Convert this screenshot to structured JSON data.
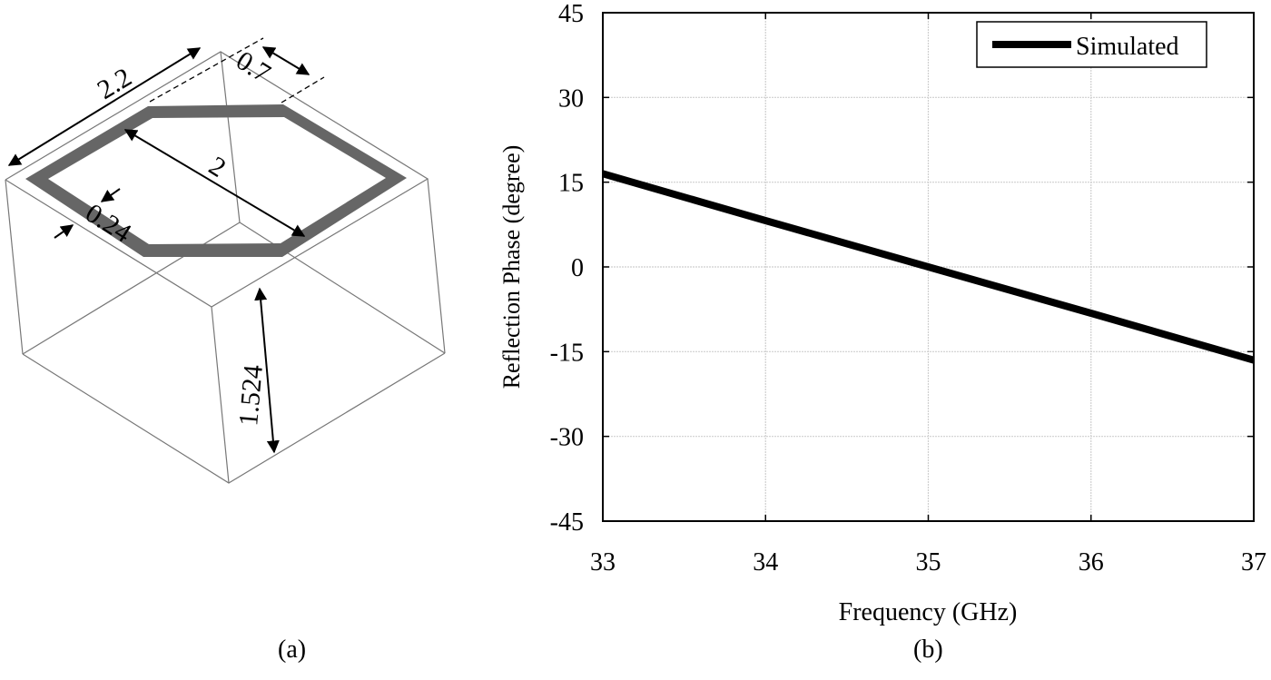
{
  "panel_a": {
    "caption": "(a)",
    "dimensions": {
      "cell_width": "2.2",
      "gap": "0.7",
      "hexagon_diagonal": "2",
      "ring_width": "0.24",
      "substrate_height": "1.524"
    }
  },
  "panel_b": {
    "caption": "(b)"
  },
  "chart_data": {
    "type": "line",
    "title": "",
    "xlabel": "Frequency (GHz)",
    "ylabel": "Reflection Phase (degree)",
    "xlim": [
      33,
      37
    ],
    "ylim": [
      -45,
      45
    ],
    "x_ticks": [
      "33",
      "34",
      "35",
      "36",
      "37"
    ],
    "y_ticks": [
      "45",
      "30",
      "15",
      "0",
      "-15",
      "-30",
      "-45"
    ],
    "grid": true,
    "legend_position": "upper right",
    "series": [
      {
        "name": "Simulated",
        "color": "#000000",
        "x": [
          33,
          34,
          35,
          36,
          37
        ],
        "values": [
          16.5,
          8.2,
          0,
          -8.2,
          -16.5
        ]
      }
    ]
  }
}
